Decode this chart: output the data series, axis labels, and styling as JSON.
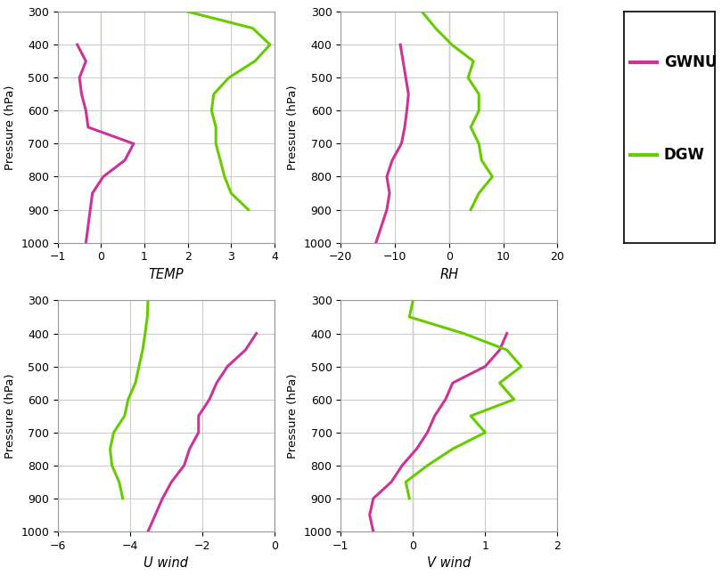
{
  "pressure": [
    300,
    350,
    400,
    450,
    500,
    550,
    600,
    650,
    700,
    750,
    800,
    850,
    900,
    950,
    1000
  ],
  "temp_gwnu": [
    null,
    null,
    -0.55,
    -0.35,
    -0.5,
    -0.45,
    -0.35,
    -0.3,
    0.75,
    0.55,
    0.05,
    -0.2,
    -0.25,
    -0.3,
    -0.35
  ],
  "temp_dgw": [
    2.0,
    3.5,
    3.9,
    3.55,
    2.95,
    2.6,
    2.55,
    2.65,
    2.65,
    2.75,
    2.85,
    3.0,
    3.4,
    null,
    null
  ],
  "rh_gwnu": [
    null,
    null,
    -9.0,
    -8.5,
    -8.0,
    -7.5,
    -7.8,
    -8.2,
    -8.8,
    -10.5,
    -11.5,
    -11.0,
    -11.5,
    -12.5,
    -13.5
  ],
  "rh_dgw": [
    -5.0,
    -2.5,
    0.5,
    4.5,
    3.5,
    5.5,
    5.5,
    4.0,
    5.5,
    6.0,
    8.0,
    5.5,
    4.0,
    null,
    null
  ],
  "uwind_gwnu": [
    null,
    null,
    -0.5,
    -0.8,
    -1.3,
    -1.6,
    -1.8,
    -2.1,
    -2.1,
    -2.35,
    -2.5,
    -2.85,
    -3.1,
    -3.3,
    -3.5
  ],
  "uwind_dgw": [
    -3.5,
    -3.52,
    -3.58,
    -3.65,
    -3.75,
    -3.85,
    -4.05,
    -4.15,
    -4.45,
    -4.55,
    -4.5,
    -4.3,
    -4.2,
    null,
    null
  ],
  "vwind_gwnu": [
    null,
    null,
    1.3,
    1.2,
    1.0,
    0.55,
    0.45,
    0.3,
    0.2,
    0.05,
    -0.15,
    -0.3,
    -0.55,
    -0.6,
    -0.55
  ],
  "vwind_dgw": [
    0.0,
    -0.05,
    0.7,
    1.3,
    1.5,
    1.2,
    1.4,
    0.8,
    1.0,
    0.55,
    0.2,
    -0.1,
    -0.05,
    null,
    null
  ],
  "gwnu_color": "#cc3399",
  "dgw_color": "#66cc00",
  "grid_color": "#cccccc",
  "ref_line_color": "#aa8866",
  "bg_color": "#ffffff",
  "ylim": [
    1000,
    300
  ],
  "yticks": [
    300,
    400,
    500,
    600,
    700,
    800,
    900,
    1000
  ],
  "ylabel": "Pressure (hPa)",
  "temp_xlim": [
    -1,
    4
  ],
  "temp_xticks": [
    -1,
    0,
    1,
    2,
    3,
    4
  ],
  "temp_xlabel": "TEMP",
  "rh_xlim": [
    -20,
    20
  ],
  "rh_xticks": [
    -20,
    -10,
    0,
    10,
    20
  ],
  "rh_xlabel": "RH",
  "uwind_xlim": [
    -6,
    0
  ],
  "uwind_xticks": [
    -6,
    -4,
    -2,
    0
  ],
  "uwind_xlabel": "U wind",
  "vwind_xlim": [
    -1,
    2
  ],
  "vwind_xticks": [
    -1,
    0,
    1,
    2
  ],
  "vwind_xlabel": "V wind",
  "legend_labels": [
    "GWNU",
    "DGW"
  ],
  "linewidth": 2.2
}
